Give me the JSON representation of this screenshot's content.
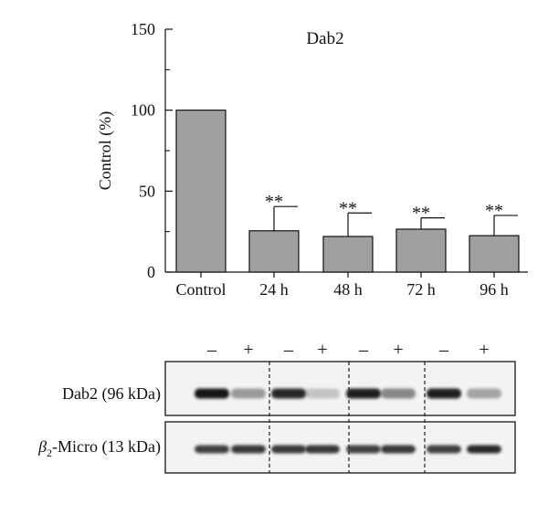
{
  "chart_data": {
    "type": "bar",
    "title": "Dab2",
    "ylabel": "Control (%)",
    "xlabel": "",
    "categories": [
      "Control",
      "24 h",
      "48 h",
      "72 h",
      "96 h"
    ],
    "values": [
      100,
      25.5,
      22,
      26.5,
      22.5
    ],
    "error_upper": [
      null,
      40.5,
      36.5,
      33.5,
      35
    ],
    "annotations": [
      null,
      "**",
      "**",
      "**",
      "**"
    ],
    "ylim": [
      0,
      150
    ],
    "yticks_major": [
      0,
      50,
      100,
      150
    ],
    "yticks_minor": [
      25,
      75,
      125
    ],
    "bar_color": "#a0a0a0",
    "grid": false
  },
  "western_blot": {
    "lane_signs": [
      "–",
      "+",
      "–",
      "+",
      "–",
      "+",
      "–",
      "+"
    ],
    "rows": [
      {
        "label_main": "Dab2 (96 kDa)",
        "band_intensity": [
          1.0,
          0.35,
          0.9,
          0.12,
          0.95,
          0.45,
          0.95,
          0.3
        ]
      },
      {
        "label_beta": "β",
        "label_sub": "2",
        "label_rest": "-Micro (13 kDa)",
        "band_intensity": [
          0.8,
          0.85,
          0.85,
          0.85,
          0.8,
          0.85,
          0.8,
          0.9
        ]
      }
    ]
  }
}
